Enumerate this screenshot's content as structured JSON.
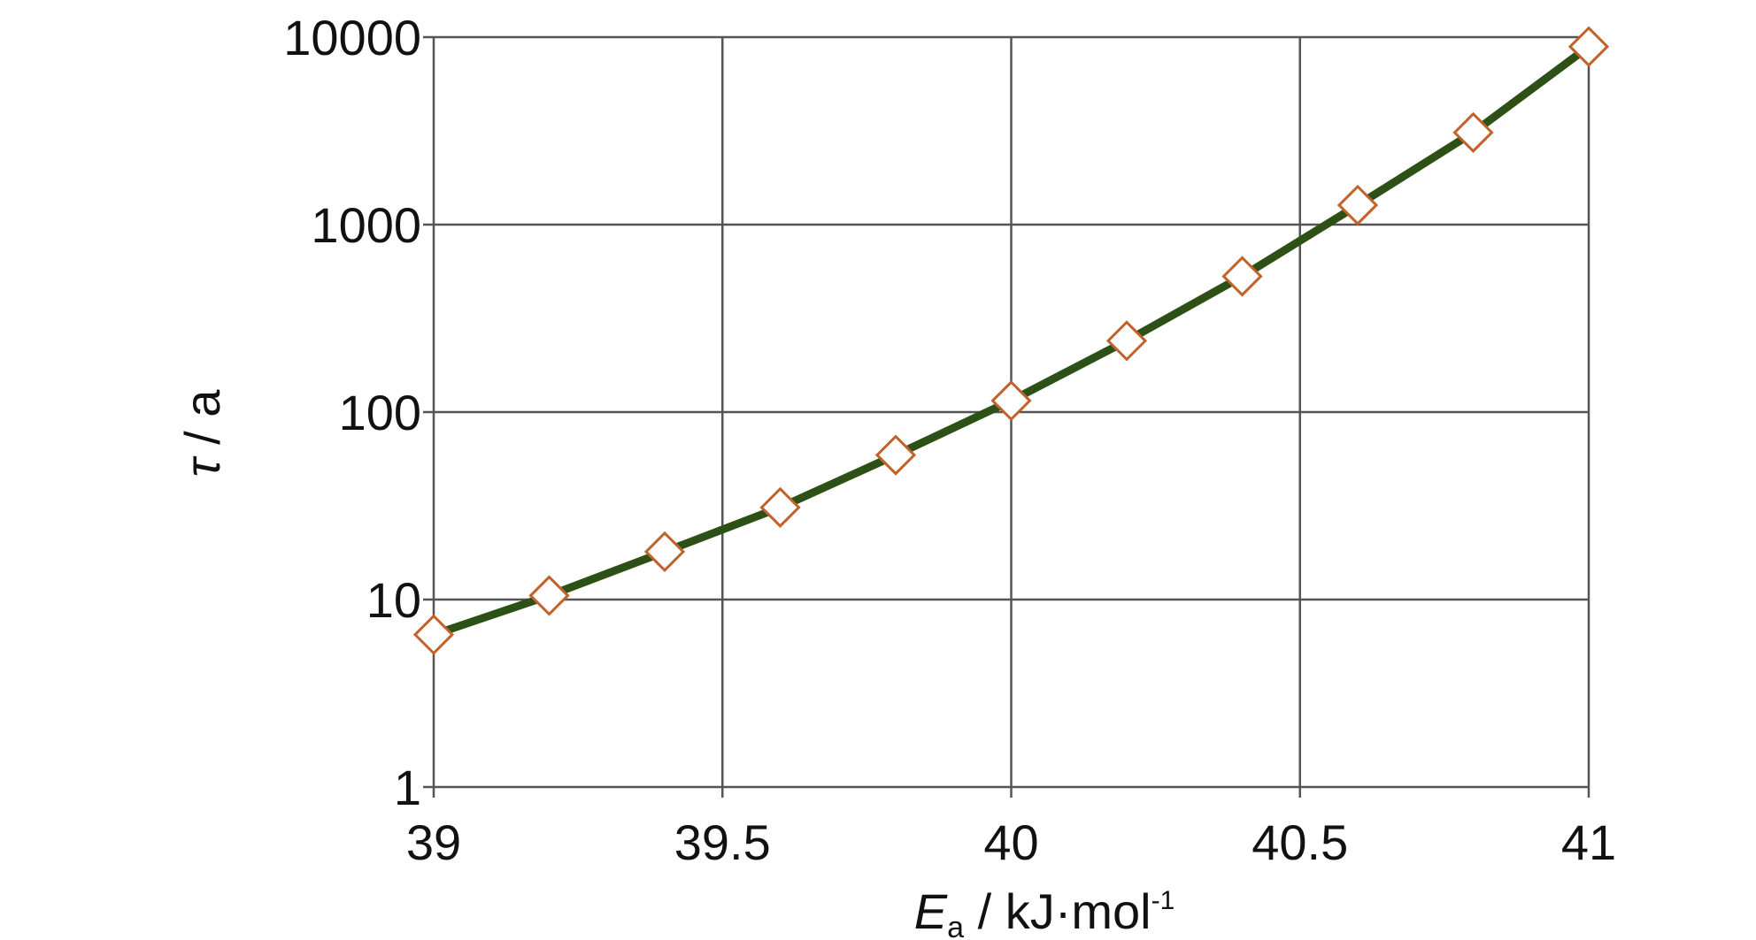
{
  "chart_data": {
    "type": "line",
    "title": "",
    "xlabel": {
      "symbol": "E",
      "subscript": "a",
      "unit": " / kJ·mol",
      "superscript": "-1"
    },
    "ylabel": {
      "symbol": "τ",
      "unit": " / a"
    },
    "xlim": [
      39,
      41
    ],
    "ylim": [
      1,
      10000
    ],
    "yscale": "log",
    "grid": true,
    "x_ticks": [
      "39",
      "39.5",
      "40",
      "40.5",
      "41"
    ],
    "y_ticks": [
      "1",
      "10",
      "100",
      "1000",
      "10000"
    ],
    "series": [
      {
        "x": [
          39.0,
          39.2,
          39.4,
          39.6,
          39.8,
          40.0,
          40.2,
          40.4,
          40.6,
          40.8,
          41.0
        ],
        "y": [
          6.5,
          10.5,
          18,
          31,
          59,
          115,
          240,
          530,
          1270,
          3100,
          8900
        ]
      }
    ],
    "colors": {
      "line": "#2d5016",
      "marker_edge": "#c0622a",
      "marker_fill": "#ffffff",
      "grid": "#555555"
    },
    "marker": "open-diamond"
  }
}
